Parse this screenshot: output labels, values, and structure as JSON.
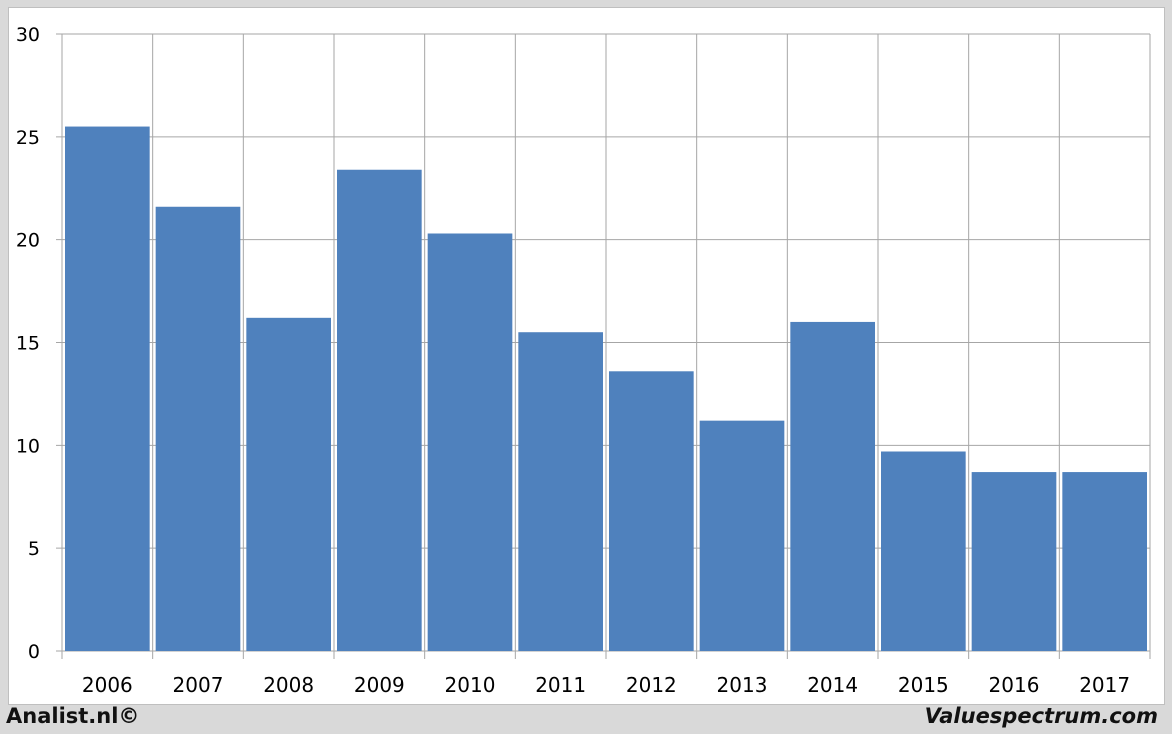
{
  "chart_data": {
    "type": "bar",
    "categories": [
      "2006",
      "2007",
      "2008",
      "2009",
      "2010",
      "2011",
      "2012",
      "2013",
      "2014",
      "2015",
      "2016",
      "2017"
    ],
    "values": [
      25.5,
      21.6,
      16.2,
      23.4,
      20.3,
      15.5,
      13.6,
      11.2,
      16.0,
      9.7,
      8.7,
      8.7
    ],
    "title": "",
    "xlabel": "",
    "ylabel": "",
    "ylim": [
      0,
      30
    ],
    "yticks": [
      0,
      5,
      10,
      15,
      20,
      25,
      30
    ],
    "grid": true,
    "bar_color": "#4f81bd",
    "grid_color": "#a6a6a6"
  },
  "footer": {
    "left": "Analist.nl©",
    "right": "Valuespectrum.com"
  }
}
